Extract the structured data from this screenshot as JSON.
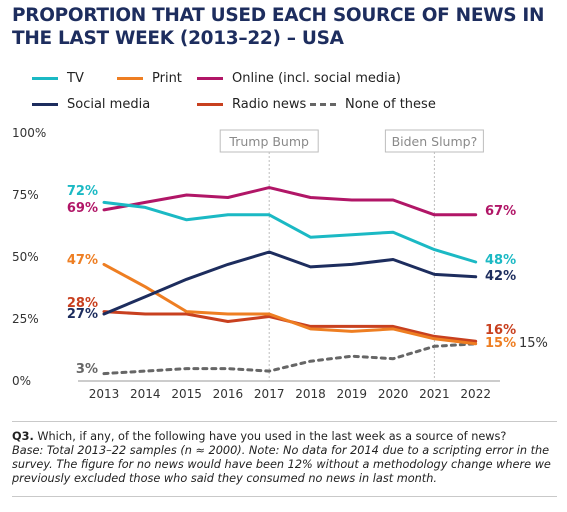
{
  "title": "PROPORTION THAT USED EACH SOURCE OF  NEWS IN THE LAST WEEK (2013–22) – USA",
  "annotations": {
    "left": "Trump Bump",
    "right": "Biden Slump?"
  },
  "notes": {
    "question_number": "Q3.",
    "question_text": " Which, if any, of the following have you used in the last week as a source of news?",
    "base_text": "Base: Total 2013–22 samples (n ≈ 2000). Note: No data for 2014 due to a scripting error in the survey. The figure for no news would have been 12% without a methodology change where we previously excluded those who said they consumed no news in last month."
  },
  "chart_data": {
    "type": "line",
    "title": "PROPORTION THAT USED EACH SOURCE OF  NEWS IN THE LAST WEEK (2013–22) – USA",
    "x": [
      2013,
      2014,
      2015,
      2016,
      2017,
      2018,
      2019,
      2020,
      2021,
      2022
    ],
    "x_tick_labels": [
      "2013",
      "2014",
      "2015",
      "2016",
      "2017",
      "2018",
      "2019",
      "2020",
      "2021",
      "2022"
    ],
    "ylim": [
      0,
      100
    ],
    "y_ticks": [
      0,
      25,
      50,
      75,
      100
    ],
    "y_tick_labels": [
      "0%",
      "25%",
      "50%",
      "75%",
      "100%"
    ],
    "xlabel": "",
    "ylabel": "",
    "legend_position": "top",
    "series": [
      {
        "name": "TV",
        "color": "#1bb9c4",
        "dashed": false,
        "values": [
          72,
          70,
          65,
          67,
          67,
          58,
          59,
          60,
          53,
          48
        ],
        "start_label": "72%",
        "end_label": "48%"
      },
      {
        "name": "Print",
        "color": "#ee7e22",
        "dashed": false,
        "values": [
          47,
          38,
          28,
          27,
          27,
          21,
          20,
          21,
          17,
          15
        ],
        "start_label": "47%",
        "end_label": "15%"
      },
      {
        "name": "Online (incl. social media)",
        "color": "#b11667",
        "dashed": false,
        "values": [
          69,
          72,
          75,
          74,
          78,
          74,
          73,
          73,
          67,
          67
        ],
        "start_label": "69%",
        "end_label": "67%"
      },
      {
        "name": "Social media",
        "color": "#1d2d5e",
        "dashed": false,
        "values": [
          27,
          34,
          41,
          47,
          52,
          46,
          47,
          49,
          43,
          42
        ],
        "start_label": "27%",
        "end_label": "42%"
      },
      {
        "name": "Radio news",
        "color": "#c8401f",
        "dashed": false,
        "values": [
          28,
          27,
          27,
          24,
          26,
          22,
          22,
          22,
          18,
          16
        ],
        "start_label": "28%",
        "end_label": "16%"
      },
      {
        "name": "None of these",
        "color": "#666666",
        "dashed": true,
        "values": [
          3,
          4,
          5,
          5,
          4,
          8,
          10,
          9,
          14,
          15
        ],
        "start_label": "3%",
        "end_label": "15%"
      }
    ]
  }
}
